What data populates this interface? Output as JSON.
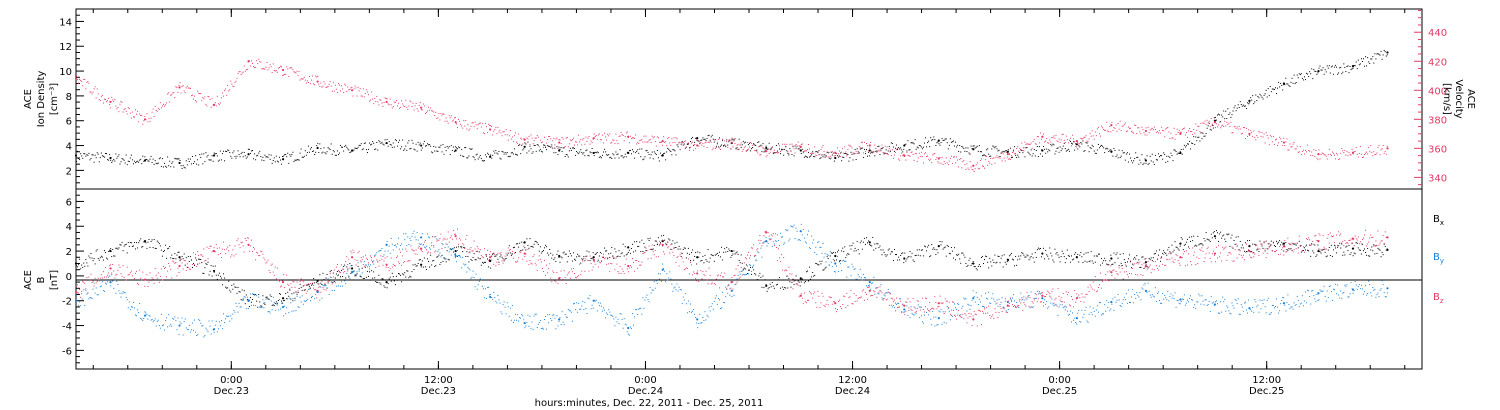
{
  "chart_data": [
    {
      "type": "scatter",
      "title": "",
      "ylabel_left": [
        "ACE",
        "Ion Density",
        "[cm⁻³]"
      ],
      "ylabel_right": [
        "ACE",
        "Velocity",
        "[km/s]"
      ],
      "xlim": [
        "2011-12-22 15:00",
        "2011-12-25 21:00"
      ],
      "ylim_left": [
        0.5,
        15
      ],
      "ylim_right": [
        332,
        456
      ],
      "yticks_left": [
        2,
        4,
        6,
        8,
        10,
        12,
        14
      ],
      "yticks_right": [
        340,
        360,
        380,
        400,
        420,
        440
      ],
      "series": [
        {
          "name": "",
          "axis": "left",
          "color": "#000000",
          "x_hours": [
            0,
            2,
            4,
            6,
            8,
            10,
            12,
            14,
            16,
            18,
            20,
            22,
            24,
            26,
            28,
            30,
            32,
            34,
            36,
            38,
            40,
            42,
            44,
            46,
            48,
            50,
            52,
            54,
            56,
            58,
            60,
            62,
            64,
            66,
            68,
            70,
            72,
            74,
            76
          ],
          "values": [
            3.2,
            3.0,
            2.8,
            2.6,
            3.2,
            3.3,
            2.9,
            3.8,
            3.6,
            4.2,
            4.0,
            3.6,
            3.1,
            3.9,
            3.6,
            3.4,
            3.4,
            3.2,
            4.6,
            4.2,
            3.8,
            3.6,
            3.0,
            3.6,
            4.0,
            4.4,
            3.7,
            3.5,
            3.6,
            4.1,
            3.5,
            2.8,
            3.4,
            6.0,
            7.6,
            9.0,
            10.0,
            10.4,
            11.5
          ]
        },
        {
          "name": "",
          "axis": "right",
          "color": "#e23a63",
          "x_hours": [
            0,
            2,
            4,
            6,
            8,
            10,
            12,
            14,
            16,
            18,
            20,
            22,
            24,
            26,
            28,
            30,
            32,
            34,
            36,
            38,
            40,
            42,
            44,
            46,
            48,
            50,
            52,
            54,
            56,
            58,
            60,
            62,
            64,
            66,
            68,
            70,
            72,
            74,
            76
          ],
          "values": [
            408,
            392,
            380,
            402,
            390,
            420,
            414,
            406,
            400,
            392,
            388,
            378,
            373,
            366,
            364,
            367,
            368,
            365,
            362,
            364,
            358,
            361,
            357,
            362,
            355,
            353,
            348,
            356,
            368,
            365,
            376,
            372,
            370,
            378,
            370,
            364,
            356,
            357,
            360
          ]
        }
      ]
    },
    {
      "type": "scatter",
      "title": "",
      "ylabel_left": [
        "ACE",
        "B",
        "[nT]"
      ],
      "xlim": [
        "2011-12-22 15:00",
        "2011-12-25 21:00"
      ],
      "ylim": [
        -7.5,
        7
      ],
      "yticks": [
        -6,
        -4,
        -2,
        0,
        2,
        4,
        6
      ],
      "xticks": [
        {
          "top": "0:00",
          "bottom": "Dec.23"
        },
        {
          "top": "12:00",
          "bottom": "Dec.23"
        },
        {
          "top": "0:00",
          "bottom": "Dec.24"
        },
        {
          "top": "12:00",
          "bottom": "Dec.24"
        },
        {
          "top": "0:00",
          "bottom": "Dec.25"
        },
        {
          "top": "12:00",
          "bottom": "Dec.25"
        }
      ],
      "xlabel": "hours:minutes, Dec. 22, 2011 - Dec. 25, 2011",
      "series": [
        {
          "name": "Bx",
          "color": "#000000",
          "x_hours": [
            0,
            2,
            4,
            6,
            8,
            10,
            12,
            14,
            16,
            18,
            20,
            22,
            24,
            26,
            28,
            30,
            32,
            34,
            36,
            38,
            40,
            42,
            44,
            46,
            48,
            50,
            52,
            54,
            56,
            58,
            60,
            62,
            64,
            66,
            68,
            70,
            72,
            74,
            76
          ],
          "values": [
            1.0,
            2.0,
            2.8,
            1.5,
            0.4,
            -2.0,
            -1.8,
            -0.4,
            0.6,
            -0.5,
            0.9,
            2.0,
            1.2,
            2.7,
            1.6,
            1.5,
            2.3,
            2.8,
            1.5,
            2.0,
            -0.8,
            -0.2,
            1.6,
            2.7,
            1.4,
            2.4,
            1.0,
            1.3,
            1.8,
            1.5,
            1.4,
            1.1,
            2.6,
            3.2,
            2.4,
            2.6,
            2.0,
            2.2,
            2.1
          ]
        },
        {
          "name": "By",
          "color": "#1a82d6",
          "x_hours": [
            0,
            2,
            4,
            6,
            8,
            10,
            12,
            14,
            16,
            18,
            20,
            22,
            24,
            26,
            28,
            30,
            32,
            34,
            36,
            38,
            40,
            42,
            44,
            46,
            48,
            50,
            52,
            54,
            56,
            58,
            60,
            62,
            64,
            66,
            68,
            70,
            72,
            74,
            76
          ],
          "values": [
            -2.0,
            -0.5,
            -3.2,
            -4.0,
            -4.3,
            -2.0,
            -2.5,
            -1.3,
            0.3,
            2.5,
            3.1,
            1.6,
            -1.7,
            -3.8,
            -3.5,
            -2.0,
            -4.2,
            0.5,
            -3.5,
            -1.2,
            2.8,
            3.6,
            1.0,
            -0.5,
            -2.7,
            -3.4,
            -1.8,
            -2.1,
            -1.8,
            -3.4,
            -2.1,
            -1.2,
            -1.9,
            -2.3,
            -2.6,
            -2.2,
            -1.4,
            -1.1,
            -1.0
          ]
        },
        {
          "name": "Bz",
          "color": "#e23a63",
          "x_hours": [
            0,
            2,
            4,
            6,
            8,
            10,
            12,
            14,
            16,
            18,
            20,
            22,
            24,
            26,
            28,
            30,
            32,
            34,
            36,
            38,
            40,
            42,
            44,
            46,
            48,
            50,
            52,
            54,
            56,
            58,
            60,
            62,
            64,
            66,
            68,
            70,
            72,
            74,
            76
          ],
          "values": [
            -1.3,
            0.6,
            -0.3,
            0.8,
            2.0,
            2.5,
            -0.5,
            -1.2,
            1.5,
            0.9,
            2.2,
            3.2,
            1.5,
            1.8,
            -0.2,
            1.3,
            0.8,
            2.5,
            0.2,
            -0.5,
            3.5,
            -1.6,
            -2.2,
            -1.2,
            -2.4,
            -2.2,
            -3.5,
            -2.4,
            -1.6,
            -1.8,
            0.3,
            0.8,
            1.5,
            1.8,
            2.0,
            2.4,
            2.8,
            3.0,
            3.1
          ]
        }
      ]
    }
  ]
}
